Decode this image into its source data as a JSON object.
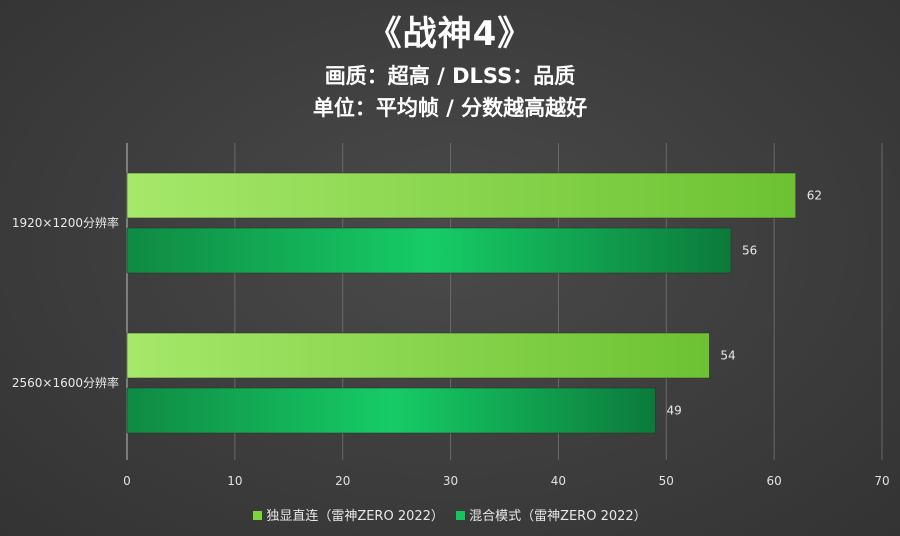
{
  "header": {
    "title": "《战神4》",
    "subtitle_line1": "画质：超高 / DLSS：品质",
    "subtitle_line2": "单位：平均帧 / 分数越高越好"
  },
  "chart_data": {
    "type": "bar",
    "orientation": "horizontal",
    "categories": [
      "1920×1200分辨率",
      "2560×1600分辨率"
    ],
    "series": [
      {
        "name": "独显直连（雷神ZERO 2022）",
        "values": [
          62,
          54
        ],
        "color": "#7ed43a"
      },
      {
        "name": "混合模式（雷神ZERO 2022）",
        "values": [
          56,
          49
        ],
        "color": "#14c45c"
      }
    ],
    "xlim": [
      0,
      70
    ],
    "xticks": [
      0,
      10,
      20,
      30,
      40,
      50,
      60,
      70
    ],
    "grid": true,
    "legend_position": "bottom"
  }
}
